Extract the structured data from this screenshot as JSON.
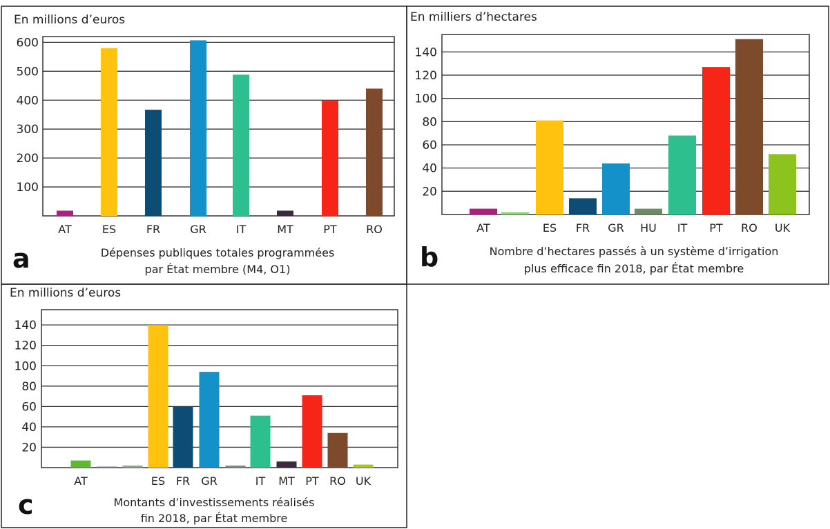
{
  "chart_data": [
    {
      "type": "bar",
      "panel": "a",
      "unit_label": "En millions d’euros",
      "caption": [
        "Dépenses publiques totales programmées",
        "par État membre (M4, O1)"
      ],
      "categories": [
        "AT",
        "ES",
        "FR",
        "GR",
        "IT",
        "MT",
        "PT",
        "RO"
      ],
      "values": [
        18,
        580,
        367,
        607,
        488,
        18,
        398,
        440
      ],
      "colors": [
        "#a8247c",
        "#ffc20e",
        "#0d4c75",
        "#1591c9",
        "#2dbf8d",
        "#3a2a3d",
        "#f72418",
        "#7d4a2b"
      ],
      "yticks": [
        100,
        200,
        300,
        400,
        500,
        600
      ],
      "ylim": [
        0,
        620
      ],
      "grid": true
    },
    {
      "type": "bar",
      "panel": "b",
      "unit_label": "En milliers d’hectares",
      "caption": [
        "Nombre d’hectares passés à un système d’irrigation",
        "plus efficace fin 2018, par État membre"
      ],
      "categories": [
        "AT",
        "",
        "ES",
        "FR",
        "GR",
        "HU",
        "IT",
        "PT",
        "RO",
        "UK"
      ],
      "values": [
        5,
        2,
        81,
        14,
        44,
        5,
        68,
        127,
        151,
        52
      ],
      "colors": [
        "#a8247c",
        "#8fd17a",
        "#ffc20e",
        "#0d4c75",
        "#1591c9",
        "#6e8a66",
        "#2dbf8d",
        "#f72418",
        "#7d4a2b",
        "#8dc31f"
      ],
      "yticks": [
        20,
        40,
        60,
        80,
        100,
        120,
        140
      ],
      "ylim": [
        0,
        155
      ],
      "grid": true
    },
    {
      "type": "bar",
      "panel": "c",
      "unit_label": "En millions d’euros",
      "caption": [
        "Montants d’investissements réalisés",
        "fin 2018, par État membre"
      ],
      "categories": [
        "AT",
        "",
        "",
        "ES",
        "FR",
        "GR",
        "",
        "IT",
        "MT",
        "PT",
        "RO",
        "UK"
      ],
      "values": [
        7,
        1,
        2,
        140,
        60,
        94,
        2,
        51,
        6,
        71,
        34,
        3
      ],
      "colors": [
        "#5fb832",
        "#8b6f9a",
        "#8ea58a",
        "#ffc20e",
        "#0d4c75",
        "#1591c9",
        "#7a8c79",
        "#2dbf8d",
        "#3a2a3d",
        "#f72418",
        "#7d4a2b",
        "#a8c71d"
      ],
      "yticks": [
        20,
        40,
        60,
        80,
        100,
        120,
        140
      ],
      "ylim": [
        0,
        155
      ],
      "grid": true
    }
  ]
}
